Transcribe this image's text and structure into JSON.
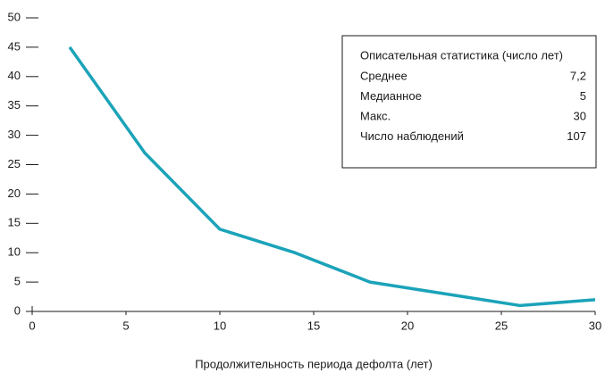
{
  "chart_data": {
    "type": "line",
    "x_label": "Продолжительность периода дефолта (лет)",
    "x": [
      2,
      6,
      10,
      14,
      18,
      22,
      26,
      30
    ],
    "series": [
      {
        "color": "#1ba3b9",
        "values": [
          45,
          27,
          14,
          10,
          5,
          3,
          1,
          2
        ]
      }
    ],
    "xlim": [
      0,
      30
    ],
    "xticks": [
      0,
      5,
      10,
      15,
      20,
      25,
      30
    ],
    "ylim": [
      0,
      50
    ],
    "yticks": [
      0,
      5,
      10,
      15,
      20,
      25,
      30,
      35,
      40,
      45,
      50
    ],
    "stats_box": {
      "title": "Описательная статистика (число лет)",
      "rows": [
        [
          "Среднее",
          "7,2"
        ],
        [
          "Медианное",
          "5"
        ],
        [
          "Макс.",
          "30"
        ],
        [
          "Число наблюдений",
          "107"
        ]
      ]
    }
  }
}
